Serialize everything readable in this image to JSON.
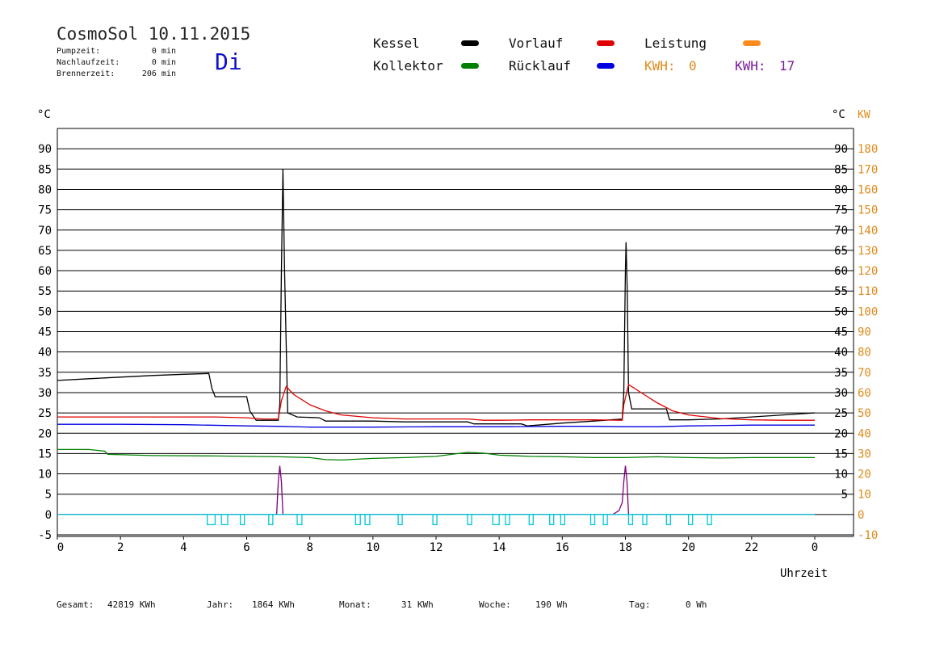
{
  "header": {
    "title": "CosmoSol 10.11.2015",
    "day": "Di",
    "stats": [
      {
        "label": "Pumpzeit:",
        "value": "0 min"
      },
      {
        "label": "Nachlaufzeit:",
        "value": "0 min"
      },
      {
        "label": "Brennerzeit:",
        "value": "206 min"
      }
    ]
  },
  "legend": {
    "kessel": {
      "label": "Kessel",
      "color": "#000000"
    },
    "kollektor": {
      "label": "Kollektor",
      "color": "#008000"
    },
    "vorlauf": {
      "label": "Vorlauf",
      "color": "#e00000"
    },
    "ruecklauf": {
      "label": "Rücklauf",
      "color": "#0000e0"
    },
    "leistung": {
      "label": "Leistung",
      "color": "#ff8c1a"
    },
    "kwh_orange": {
      "label": "KWH:",
      "value": "0",
      "color": "#e08a1a"
    },
    "kwh_purple": {
      "label": "KWH:",
      "value": "17",
      "color": "#7a1a9a"
    }
  },
  "footer": {
    "gesamt": {
      "label": "Gesamt:",
      "value": "42819 KWh"
    },
    "jahr": {
      "label": "Jahr:",
      "value": "1864 KWh"
    },
    "monat": {
      "label": "Monat:",
      "value": "31 KWh"
    },
    "woche": {
      "label": "Woche:",
      "value": "190 Wh"
    },
    "tag": {
      "label": "Tag:",
      "value": "0 Wh"
    }
  },
  "chart_data": {
    "type": "line",
    "xlabel": "Uhrzeit",
    "xlim": [
      0,
      24
    ],
    "x_ticks": [
      "0",
      "2",
      "4",
      "6",
      "8",
      "10",
      "12",
      "14",
      "16",
      "18",
      "20",
      "22",
      "0"
    ],
    "ylabel_left": "°C",
    "ylabel_right_temp": "°C",
    "ylabel_right_power": "KW",
    "ylim": [
      -5,
      95
    ],
    "y_ticks_left": [
      "90",
      "85",
      "80",
      "75",
      "70",
      "65",
      "60",
      "55",
      "50",
      "45",
      "40",
      "35",
      "30",
      "25",
      "20",
      "15",
      "10",
      "5",
      "0",
      "-5"
    ],
    "y_ticks_right_temp": [
      "90",
      "85",
      "80",
      "75",
      "70",
      "65",
      "60",
      "55",
      "50",
      "45",
      "40",
      "35",
      "30",
      "25",
      "20",
      "15",
      "10",
      "5"
    ],
    "y_ticks_right_power": [
      "180",
      "170",
      "160",
      "150",
      "140",
      "130",
      "120",
      "110",
      "100",
      "90",
      "80",
      "70",
      "60",
      "50",
      "40",
      "30",
      "20",
      "10",
      "0",
      "-10"
    ],
    "grid": true,
    "series": [
      {
        "name": "Kessel",
        "color": "#000000",
        "points": [
          [
            0,
            33
          ],
          [
            1,
            33.4
          ],
          [
            2,
            33.8
          ],
          [
            3,
            34.2
          ],
          [
            4,
            34.5
          ],
          [
            4.8,
            34.7
          ],
          [
            4.9,
            31
          ],
          [
            5,
            29
          ],
          [
            6,
            29
          ],
          [
            6.1,
            25.5
          ],
          [
            6.3,
            23.2
          ],
          [
            7.0,
            23.2
          ],
          [
            7.05,
            27
          ],
          [
            7.1,
            60
          ],
          [
            7.15,
            85
          ],
          [
            7.2,
            60
          ],
          [
            7.3,
            25
          ],
          [
            7.6,
            24
          ],
          [
            8.3,
            23.8
          ],
          [
            8.5,
            23
          ],
          [
            10,
            23
          ],
          [
            11,
            22.8
          ],
          [
            13,
            22.8
          ],
          [
            13.2,
            22.3
          ],
          [
            14.7,
            22.3
          ],
          [
            14.9,
            21.8
          ],
          [
            16,
            22.5
          ],
          [
            17,
            23.0
          ],
          [
            17.9,
            23.5
          ],
          [
            17.95,
            30
          ],
          [
            18,
            60
          ],
          [
            18.02,
            67
          ],
          [
            18.06,
            55
          ],
          [
            18.1,
            30
          ],
          [
            18.2,
            26
          ],
          [
            19.3,
            26
          ],
          [
            19.4,
            23.3
          ],
          [
            20,
            23.3
          ],
          [
            21,
            23.5
          ],
          [
            22,
            24
          ],
          [
            23,
            24.5
          ],
          [
            24,
            25
          ]
        ]
      },
      {
        "name": "Vorlauf",
        "color": "#e00000",
        "points": [
          [
            0,
            24
          ],
          [
            2,
            24
          ],
          [
            4,
            24
          ],
          [
            5,
            24
          ],
          [
            6,
            23.8
          ],
          [
            6.5,
            23.5
          ],
          [
            7.0,
            23.5
          ],
          [
            7.1,
            28
          ],
          [
            7.25,
            31.5
          ],
          [
            7.5,
            29.5
          ],
          [
            8,
            27
          ],
          [
            8.5,
            25.5
          ],
          [
            9,
            24.5
          ],
          [
            10,
            23.8
          ],
          [
            11,
            23.5
          ],
          [
            12,
            23.5
          ],
          [
            13,
            23.5
          ],
          [
            13.5,
            23.2
          ],
          [
            14,
            23.2
          ],
          [
            15,
            23.3
          ],
          [
            16,
            23.3
          ],
          [
            17,
            23.3
          ],
          [
            17.9,
            23.2
          ],
          [
            17.95,
            27
          ],
          [
            18.1,
            32
          ],
          [
            18.5,
            30
          ],
          [
            19,
            27.5
          ],
          [
            19.5,
            25.5
          ],
          [
            20,
            24.5
          ],
          [
            21,
            23.6
          ],
          [
            22,
            23.3
          ],
          [
            23,
            23.2
          ],
          [
            24,
            23.2
          ]
        ]
      },
      {
        "name": "Rücklauf",
        "color": "#0000e0",
        "points": [
          [
            0,
            22.2
          ],
          [
            2,
            22.2
          ],
          [
            4,
            22.1
          ],
          [
            6,
            21.8
          ],
          [
            7,
            21.7
          ],
          [
            8,
            21.5
          ],
          [
            10,
            21.5
          ],
          [
            12,
            21.6
          ],
          [
            14,
            21.6
          ],
          [
            16,
            21.7
          ],
          [
            17,
            21.7
          ],
          [
            18,
            21.6
          ],
          [
            19,
            21.6
          ],
          [
            20,
            21.8
          ],
          [
            22,
            22
          ],
          [
            24,
            22
          ]
        ]
      },
      {
        "name": "Kollektor",
        "color": "#008000",
        "points": [
          [
            0,
            16
          ],
          [
            1,
            16
          ],
          [
            1.5,
            15.6
          ],
          [
            1.6,
            14.8
          ],
          [
            3,
            14.5
          ],
          [
            5,
            14.4
          ],
          [
            7,
            14.2
          ],
          [
            8,
            14
          ],
          [
            8.5,
            13.5
          ],
          [
            9,
            13.4
          ],
          [
            10,
            13.8
          ],
          [
            11,
            14.0
          ],
          [
            12,
            14.3
          ],
          [
            12.5,
            14.8
          ],
          [
            13,
            15.3
          ],
          [
            13.5,
            15.1
          ],
          [
            14,
            14.6
          ],
          [
            15,
            14.3
          ],
          [
            16,
            14.2
          ],
          [
            17,
            14.0
          ],
          [
            18,
            14.0
          ],
          [
            19,
            14.2
          ],
          [
            20,
            14.0
          ],
          [
            21,
            13.9
          ],
          [
            22,
            14.0
          ],
          [
            24,
            14.0
          ]
        ]
      },
      {
        "name": "Leistung",
        "color": "#800080",
        "points": [
          [
            0,
            0
          ],
          [
            6.95,
            0
          ],
          [
            7.0,
            8
          ],
          [
            7.05,
            12
          ],
          [
            7.1,
            8
          ],
          [
            7.15,
            0
          ],
          [
            17.6,
            0
          ],
          [
            17.8,
            1
          ],
          [
            17.9,
            3
          ],
          [
            17.95,
            8
          ],
          [
            18.0,
            12
          ],
          [
            18.05,
            8
          ],
          [
            18.1,
            0
          ],
          [
            24,
            0
          ]
        ]
      },
      {
        "name": "Pumpe",
        "color": "#00c8dc",
        "pulses": [
          [
            4.75,
            5.0
          ],
          [
            5.2,
            5.4
          ],
          [
            5.8,
            5.9
          ],
          [
            6.7,
            6.8
          ],
          [
            7.6,
            7.75
          ],
          [
            9.45,
            9.6
          ],
          [
            9.75,
            9.9
          ],
          [
            10.8,
            10.9
          ],
          [
            11.9,
            12.0
          ],
          [
            13.0,
            13.1
          ],
          [
            13.8,
            14.0
          ],
          [
            14.2,
            14.3
          ],
          [
            14.95,
            15.05
          ],
          [
            15.6,
            15.7
          ],
          [
            15.95,
            16.05
          ],
          [
            16.9,
            17.0
          ],
          [
            17.3,
            17.4
          ],
          [
            18.1,
            18.2
          ],
          [
            18.55,
            18.65
          ],
          [
            19.3,
            19.4
          ],
          [
            20.0,
            20.1
          ],
          [
            20.6,
            20.7
          ]
        ]
      }
    ]
  }
}
